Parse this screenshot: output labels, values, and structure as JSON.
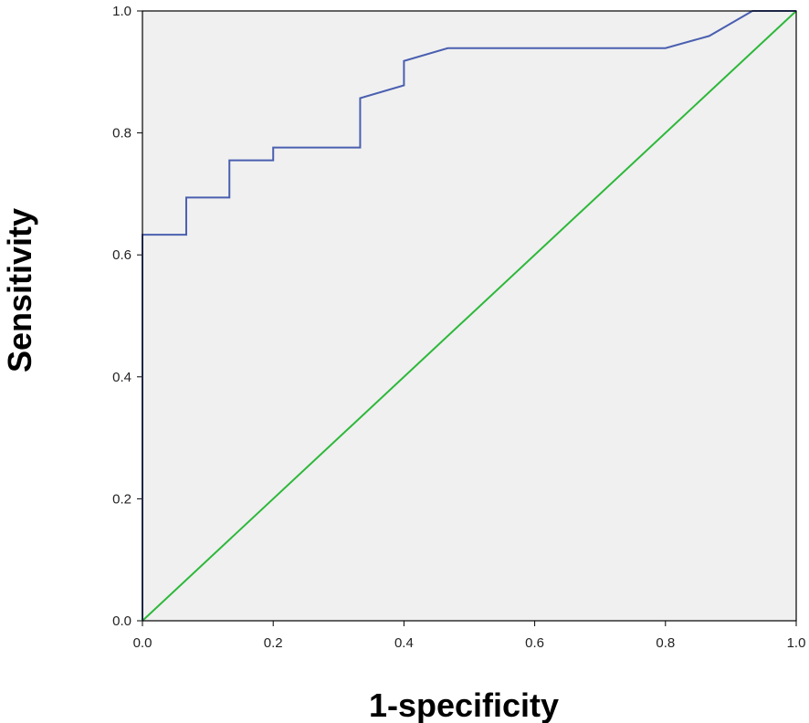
{
  "chart_data": {
    "type": "line",
    "title": "",
    "xlabel": "1-specificity",
    "ylabel": "Sensitivity",
    "xlim": [
      0,
      1
    ],
    "ylim": [
      0,
      1
    ],
    "x_ticks": [
      "0.0",
      "0.2",
      "0.4",
      "0.6",
      "0.8",
      "1.0"
    ],
    "y_ticks": [
      "0.0",
      "0.2",
      "0.4",
      "0.6",
      "0.8",
      "1.0"
    ],
    "grid": false,
    "legend": "none",
    "colors": {
      "roc": "#4a5fb0",
      "reference": "#2db83a",
      "plot_bg": "#f0f0f0"
    },
    "series": [
      {
        "points": [
          [
            0.0,
            0.0
          ],
          [
            0.0,
            0.633
          ],
          [
            0.067,
            0.633
          ],
          [
            0.067,
            0.694
          ],
          [
            0.133,
            0.694
          ],
          [
            0.133,
            0.755
          ],
          [
            0.2,
            0.755
          ],
          [
            0.2,
            0.776
          ],
          [
            0.333,
            0.776
          ],
          [
            0.333,
            0.857
          ],
          [
            0.4,
            0.878
          ],
          [
            0.4,
            0.918
          ],
          [
            0.467,
            0.939
          ],
          [
            0.8,
            0.939
          ],
          [
            0.867,
            0.959
          ],
          [
            0.933,
            1.0
          ],
          [
            1.0,
            1.0
          ]
        ]
      },
      {
        "points": [
          [
            0.0,
            0.0
          ],
          [
            1.0,
            1.0
          ]
        ]
      }
    ]
  }
}
